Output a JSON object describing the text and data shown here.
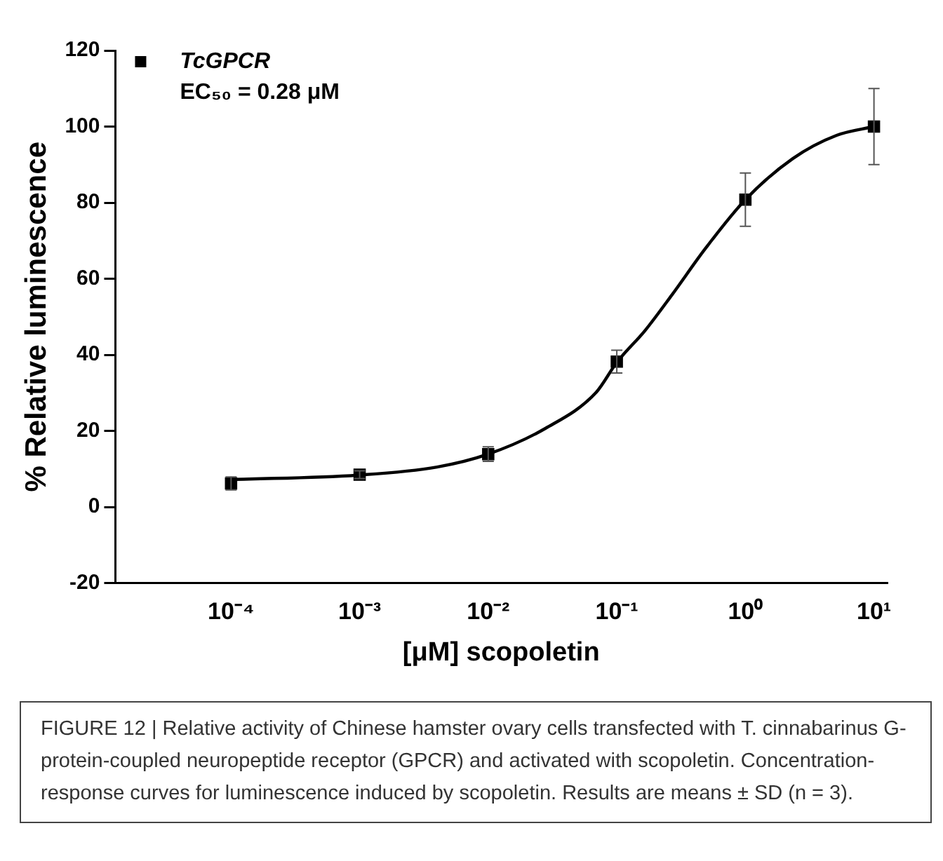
{
  "chart_data": {
    "type": "scatter",
    "xlabel": "[μM] scopoletin",
    "ylabel": "% Relative luminescence",
    "log": "x",
    "xlim": [
      1.26e-05,
      12.6
    ],
    "xticks": [
      {
        "value": 0.0001,
        "label": "10⁻⁴"
      },
      {
        "value": 0.001,
        "label": "10⁻³"
      },
      {
        "value": 0.01,
        "label": "10⁻²"
      },
      {
        "value": 0.1,
        "label": "10⁻¹"
      },
      {
        "value": 1,
        "label": "10⁰"
      },
      {
        "value": 10,
        "label": "10¹"
      }
    ],
    "ylim": [
      -20,
      120
    ],
    "yticks": [
      -20,
      0,
      20,
      40,
      60,
      80,
      100,
      120
    ],
    "grid": false,
    "legend": "top left",
    "series": [
      {
        "name": "TcGPCR",
        "marker": "square",
        "color": "#000000",
        "x": [
          0.0001,
          0.001,
          0.01,
          0.1,
          1,
          10
        ],
        "values": [
          6.2,
          8.5,
          13.9,
          38.2,
          80.8,
          100
        ],
        "errors": [
          1.7,
          1,
          1.9,
          3,
          7,
          10
        ]
      },
      {
        "type": "line",
        "marker": "none",
        "line_style": "solid",
        "color": "#000000",
        "x": [
          0.0001,
          0.001,
          0.004,
          0.01,
          0.028,
          0.069,
          0.1,
          0.166,
          0.269,
          0.49,
          1,
          2.34,
          5.13,
          10
        ],
        "values": [
          7.2,
          8.4,
          10.5,
          13.9,
          20.7,
          30.1,
          38,
          46.4,
          55.8,
          68,
          80.8,
          91.6,
          97.7,
          100
        ]
      }
    ],
    "annotations": [
      "EC₅₀ = 0.28 μM",
      "FIGURE 12 | Relative activity of Chinese hamster ovary cells transfected with T. cinnabarinus G-protein-coupled neuropeptide receptor (GPCR) and activated with scopoletin. Concentration-response curves for luminescence induced by scopoletin. Results are means ± SD (n = 3)."
    ]
  }
}
